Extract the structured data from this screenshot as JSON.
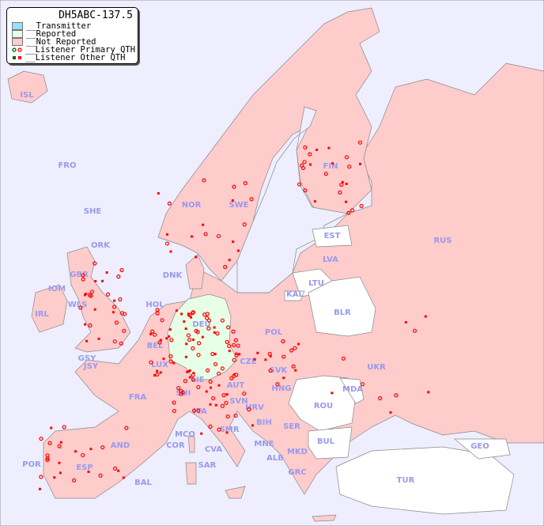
{
  "map": {
    "title": "DH5ABC-137.5",
    "colors": {
      "sea": "#eeeeff",
      "transmitter": "#99ddff",
      "reported": "#e6ffe6",
      "not_reported": "#ffcccc",
      "unreported_white": "#ffffff",
      "marker": "#ff0000",
      "label": "#9999ee"
    },
    "legend": [
      {
        "label": "__Transmitter",
        "type": "swatch",
        "color": "#99ddff"
      },
      {
        "label": "__Reported",
        "type": "swatch",
        "color": "#e6ffe6"
      },
      {
        "label": "__Not Reported",
        "type": "swatch",
        "color": "#ffcccc"
      },
      {
        "label": "__Listener Primary QTH",
        "type": "circle"
      },
      {
        "label": "__Listener Other QTH",
        "type": "square"
      }
    ],
    "countries": [
      "ISL",
      "FRO",
      "SHE",
      "ORK",
      "NOR",
      "SWE",
      "FIN",
      "RUS",
      "EST",
      "LVA",
      "LTU",
      "BLR",
      "DNK",
      "HOL",
      "DEU",
      "POL",
      "IRL",
      "GBR",
      "IOM",
      "WLS",
      "GSY",
      "JSY",
      "BEL",
      "LUX",
      "FRA",
      "SUI",
      "LIE",
      "AUT",
      "CZE",
      "SVK",
      "HNG",
      "UKR",
      "MDA",
      "ROU",
      "SVN",
      "HRV",
      "BIH",
      "SER",
      "ITA",
      "SMR",
      "MCO",
      "COR",
      "CVA",
      "AND",
      "POR",
      "ESP",
      "BAL",
      "SAR",
      "MNE",
      "ALB",
      "MKD",
      "BUL",
      "GRC",
      "TUR",
      "GEO",
      "KAL"
    ]
  }
}
